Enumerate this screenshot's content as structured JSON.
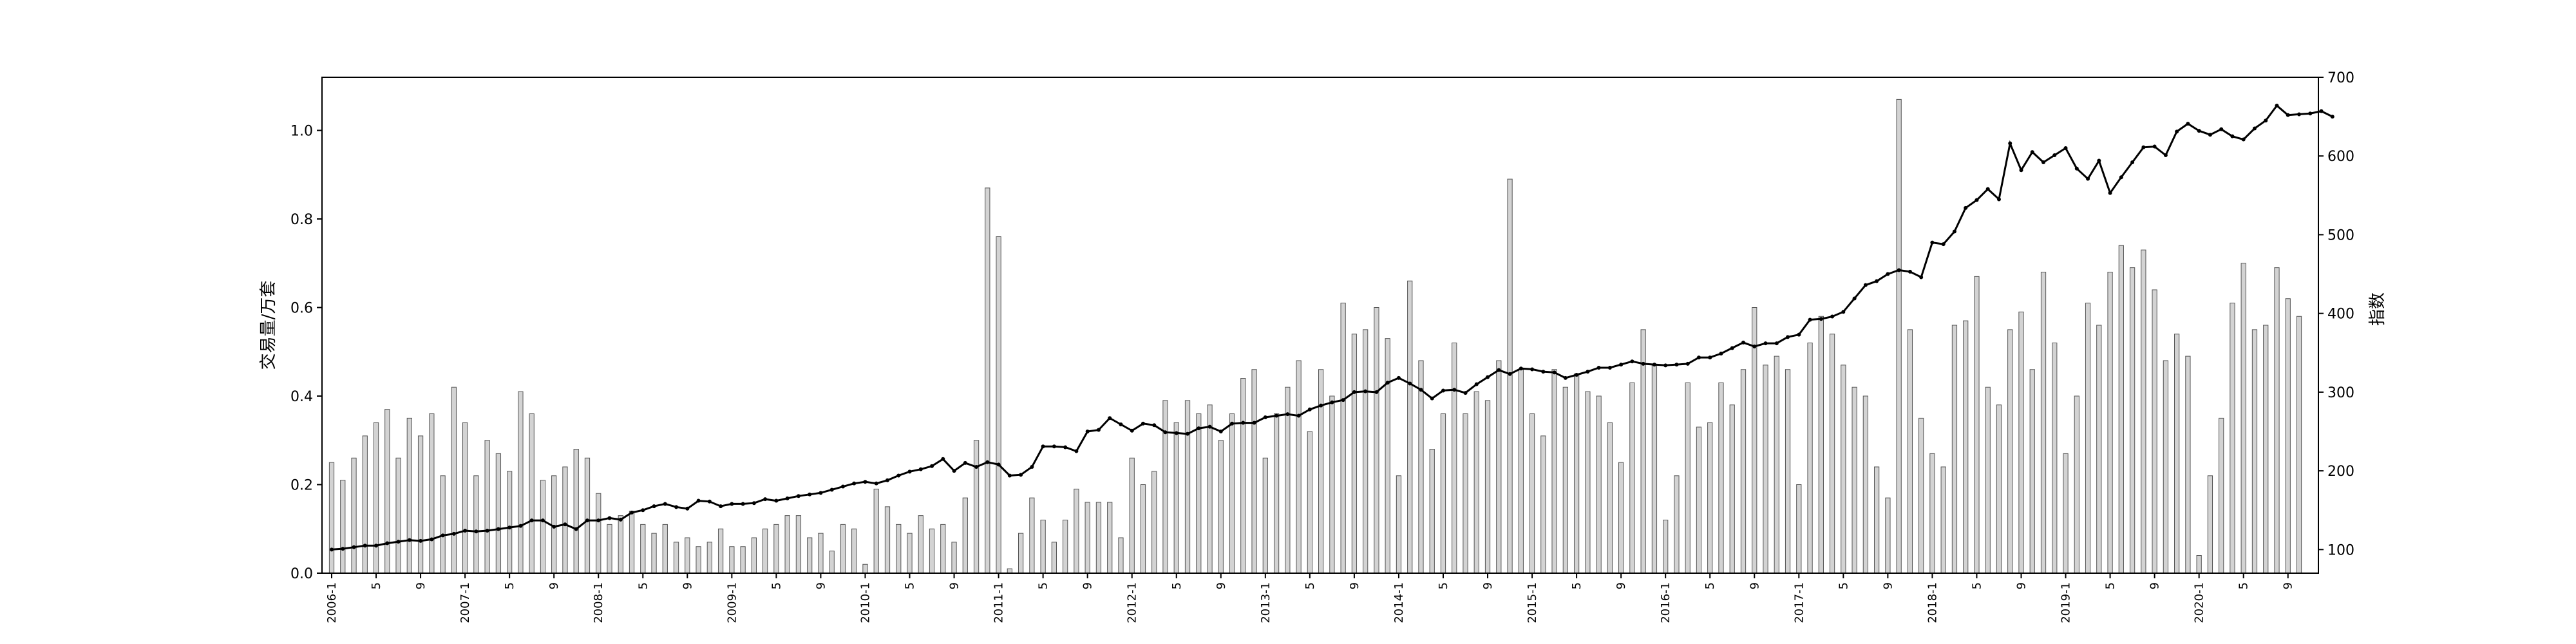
{
  "chart_data": {
    "type": "bar+line",
    "title": "",
    "xlabel": "",
    "ylabel_left": "交易量/万套",
    "ylabel_right": "指数",
    "ylim_left": [
      0,
      1.12
    ],
    "ylim_right": [
      70,
      700
    ],
    "yticks_left": [
      "0.0",
      "0.2",
      "0.4",
      "0.6",
      "0.8",
      "1.0"
    ],
    "yticks_right": [
      "100",
      "200",
      "300",
      "400",
      "500",
      "600",
      "700"
    ],
    "grid": false,
    "bar_color": "#d3d3d3",
    "line_color": "#000000",
    "series": [
      {
        "type": "bar",
        "values": [
          0.25,
          0.21,
          0.26,
          0.31,
          0.34,
          0.37,
          0.26,
          0.35,
          0.31,
          0.36,
          0.22,
          0.42,
          0.34,
          0.22,
          0.3,
          0.27,
          0.23,
          0.41,
          0.36,
          0.21,
          0.22,
          0.24,
          0.28,
          0.26,
          0.18,
          0.11,
          0.13,
          0.14,
          0.11,
          0.09,
          0.11,
          0.07,
          0.08,
          0.06,
          0.07,
          0.1,
          0.06,
          0.06,
          0.08,
          0.1,
          0.11,
          0.13,
          0.13,
          0.08,
          0.09,
          0.05,
          0.11,
          0.1,
          0.02,
          0.19,
          0.15,
          0.11,
          0.09,
          0.13,
          0.1,
          0.11,
          0.07,
          0.17,
          0.3,
          0.87,
          0.76,
          0.01,
          0.09,
          0.17,
          0.12,
          0.07,
          0.12,
          0.19,
          0.16,
          0.16,
          0.16,
          0.08,
          0.26,
          0.2,
          0.23,
          0.39,
          0.34,
          0.39,
          0.36,
          0.38,
          0.3,
          0.36,
          0.44,
          0.46,
          0.26,
          0.36,
          0.42,
          0.48,
          0.32,
          0.46,
          0.4,
          0.61,
          0.54,
          0.55,
          0.6,
          0.53,
          0.22,
          0.66,
          0.48,
          0.28,
          0.36,
          0.52,
          0.36,
          0.41,
          0.39,
          0.48,
          0.89,
          0.46,
          0.36,
          0.31,
          0.46,
          0.42,
          0.45,
          0.41,
          0.4,
          0.34,
          0.25,
          0.43,
          0.55,
          0.47,
          0.12,
          0.22,
          0.43,
          0.33,
          0.34,
          0.43,
          0.38,
          0.46,
          0.6,
          0.47,
          0.49,
          0.46,
          0.2,
          0.52,
          0.58,
          0.54,
          0.47,
          0.42,
          0.4,
          0.24,
          0.17,
          1.07,
          0.55,
          0.35,
          0.27,
          0.24,
          0.56,
          0.57,
          0.67,
          0.42,
          0.38,
          0.55,
          0.59,
          0.46,
          0.68,
          0.52,
          0.27,
          0.4,
          0.61,
          0.56,
          0.68,
          0.74,
          0.69,
          0.73,
          0.64,
          0.48,
          0.54,
          0.49,
          0.04,
          0.22,
          0.35,
          0.61,
          0.7,
          0.55,
          0.56,
          0.69,
          0.62,
          0.58
        ]
      },
      {
        "type": "line",
        "values": [
          100,
          101,
          103,
          105,
          105,
          108,
          110,
          112,
          111,
          113,
          118,
          120,
          124,
          123,
          124,
          126,
          128,
          130,
          137,
          137,
          129,
          132,
          126,
          137,
          137,
          140,
          138,
          147,
          150,
          155,
          158,
          154,
          152,
          162,
          161,
          155,
          158,
          158,
          159,
          164,
          162,
          165,
          168,
          170,
          172,
          176,
          180,
          184,
          186,
          184,
          188,
          194,
          199,
          202,
          206,
          215,
          200,
          210,
          205,
          211,
          208,
          194,
          195,
          205,
          231,
          231,
          230,
          225,
          250,
          252,
          267,
          259,
          251,
          260,
          258,
          249,
          248,
          247,
          254,
          256,
          250,
          260,
          261,
          261,
          268,
          270,
          272,
          270,
          278,
          283,
          287,
          290,
          300,
          301,
          300,
          312,
          318,
          311,
          303,
          292,
          302,
          303,
          299,
          310,
          319,
          328,
          323,
          330,
          329,
          326,
          325,
          318,
          322,
          326,
          331,
          331,
          335,
          339,
          336,
          335,
          334,
          335,
          336,
          344,
          344,
          349,
          356,
          363,
          358,
          362,
          362,
          370,
          373,
          392,
          393,
          396,
          402,
          419,
          436,
          441,
          450,
          455,
          453,
          446,
          490,
          488,
          504,
          534,
          544,
          558,
          545,
          616,
          582,
          605,
          592,
          601,
          610,
          584,
          571,
          594,
          553,
          573,
          592,
          611,
          612,
          601,
          631,
          641,
          632,
          627,
          634,
          625,
          621,
          635,
          645,
          664,
          652,
          653,
          654,
          657,
          650
        ]
      }
    ],
    "x_tick_labels": [
      "2006-1",
      "5",
      "9",
      "2007-1",
      "5",
      "9",
      "2008-1",
      "5",
      "9",
      "2009-1",
      "5",
      "9",
      "2010-1",
      "5",
      "9",
      "2011-1",
      "5",
      "9",
      "2012-1",
      "5",
      "9",
      "2013-1",
      "5",
      "9",
      "2014-1",
      "5",
      "9",
      "2015-1",
      "5",
      "9",
      "2016-1",
      "5",
      "9",
      "2017-1",
      "5",
      "9",
      "2018-1",
      "5",
      "9",
      "2019-1",
      "5",
      "9",
      "2020-1",
      "5",
      "9"
    ]
  }
}
